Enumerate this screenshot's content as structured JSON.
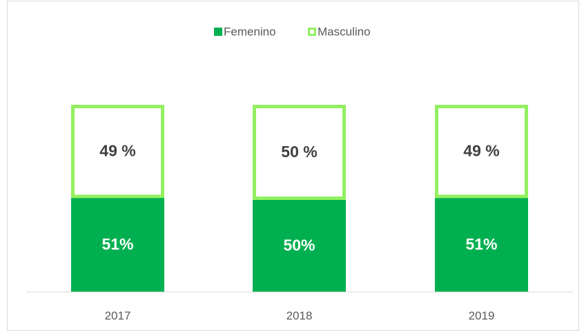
{
  "chart_data": {
    "type": "stacked_bar",
    "categories": [
      "2017",
      "2018",
      "2019"
    ],
    "series": [
      {
        "name": "Femenino",
        "color": "#00b050",
        "values": [
          51,
          50,
          51
        ],
        "value_labels": [
          "51%",
          "50%",
          "51%"
        ]
      },
      {
        "name": "Masculino",
        "color": "#92f060",
        "values": [
          49,
          50,
          49
        ],
        "value_labels": [
          "49 %",
          "50 %",
          "49 %"
        ]
      }
    ],
    "legend": "top"
  }
}
